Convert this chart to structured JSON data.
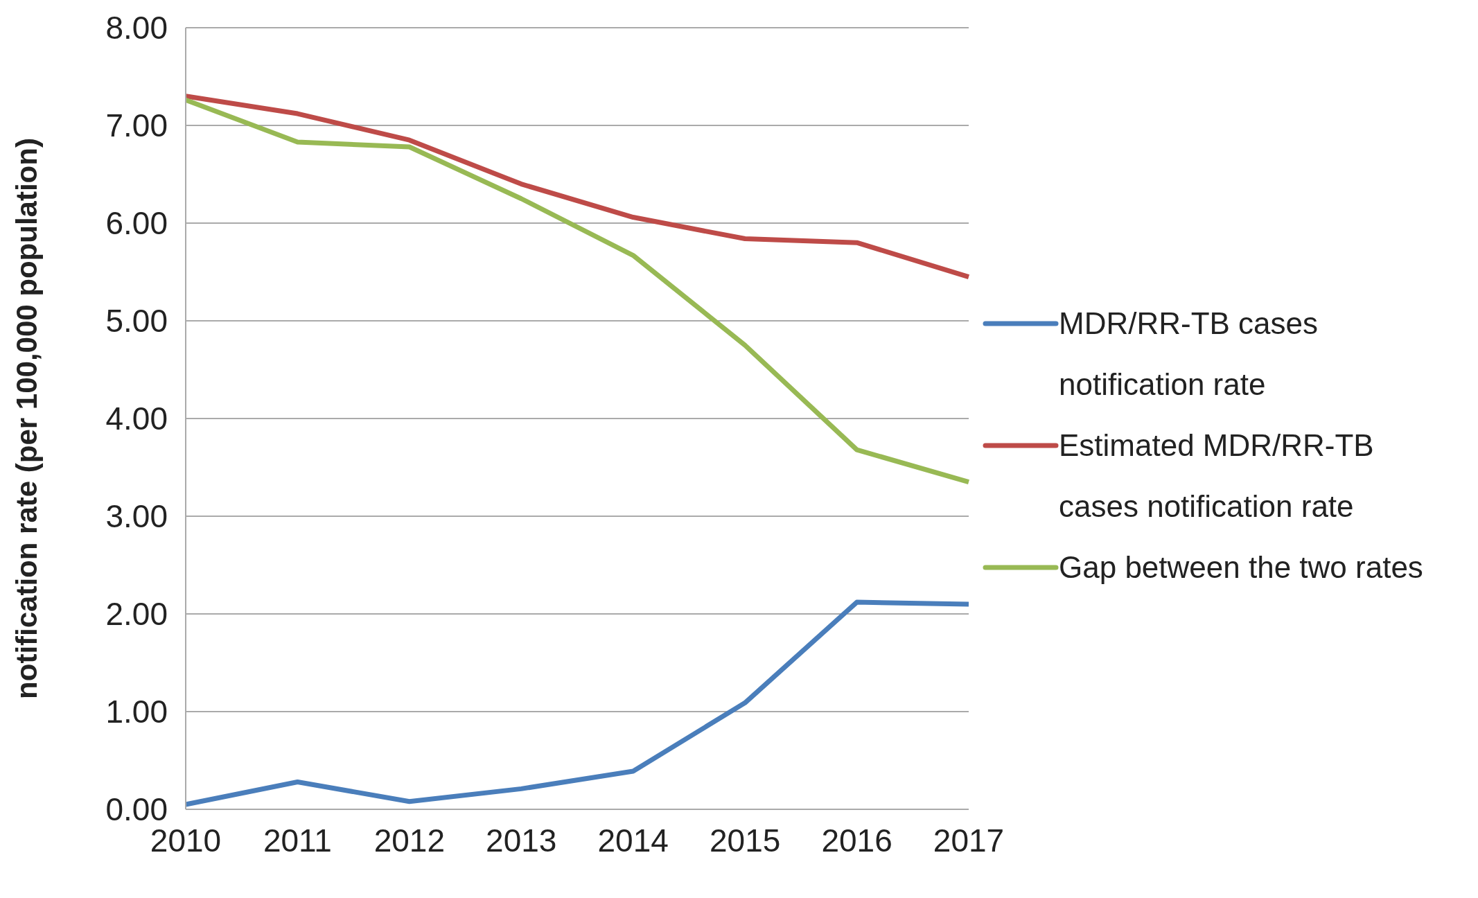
{
  "chart_data": {
    "type": "line",
    "ylabel": "notification rate  (per 100,000 population)",
    "categories": [
      "2010",
      "2011",
      "2012",
      "2013",
      "2014",
      "2015",
      "2016",
      "2017"
    ],
    "series": [
      {
        "name": "MDR/RR-TB cases notification rate",
        "color": "#4a7ebb",
        "values": [
          0.05,
          0.28,
          0.08,
          0.21,
          0.39,
          1.09,
          2.12,
          2.1
        ]
      },
      {
        "name": "Estimated MDR/RR-TB cases notification rate",
        "color": "#be4b48",
        "values": [
          7.3,
          7.12,
          6.85,
          6.4,
          6.06,
          5.84,
          5.8,
          5.45
        ]
      },
      {
        "name": "Gap between the two rates",
        "color": "#98b954",
        "values": [
          7.26,
          6.83,
          6.78,
          6.25,
          5.67,
          4.75,
          3.68,
          3.35
        ]
      }
    ],
    "ylim": [
      0,
      8
    ],
    "yticks": [
      {
        "value": 0,
        "label": "0.00"
      },
      {
        "value": 1,
        "label": "1.00"
      },
      {
        "value": 2,
        "label": "2.00"
      },
      {
        "value": 3,
        "label": "3.00"
      },
      {
        "value": 4,
        "label": "4.00"
      },
      {
        "value": 5,
        "label": "5.00"
      },
      {
        "value": 6,
        "label": "6.00"
      },
      {
        "value": 7,
        "label": "7.00"
      },
      {
        "value": 8,
        "label": "8.00"
      }
    ],
    "grid": "y",
    "legend": "right",
    "marker": "none",
    "line_style": "solid"
  }
}
